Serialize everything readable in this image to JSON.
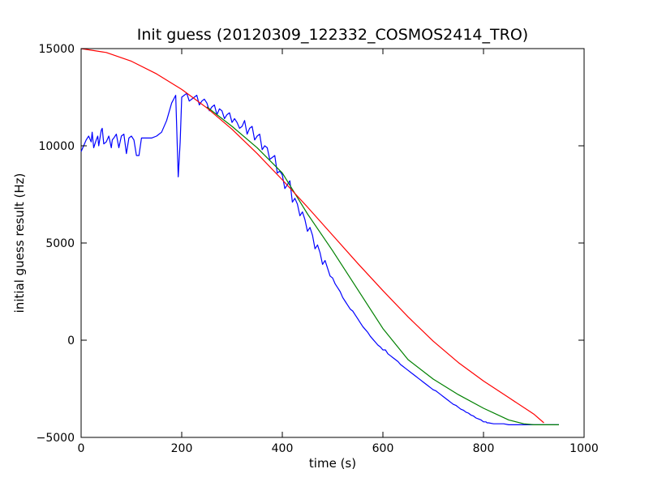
{
  "chart_data": {
    "type": "line",
    "title": "Init guess (20120309_122332_COSMOS2414_TRO)",
    "xlabel": "time (s)",
    "ylabel": "initial guess result (Hz)",
    "xlim": [
      0,
      1000
    ],
    "ylim": [
      -5000,
      15000
    ],
    "xticks": [
      0,
      200,
      400,
      600,
      800,
      1000
    ],
    "yticks": [
      -5000,
      0,
      5000,
      10000,
      15000
    ],
    "xtick_labels": [
      "0",
      "200",
      "400",
      "600",
      "800",
      "1000"
    ],
    "ytick_labels": [
      "−5000",
      "0",
      "5000",
      "10000",
      "15000"
    ],
    "grid": false,
    "legend": "none",
    "series": [
      {
        "color": "#0000ff",
        "x": [
          0,
          5,
          10,
          15,
          20,
          22,
          25,
          30,
          33,
          35,
          40,
          42,
          45,
          50,
          55,
          60,
          62,
          65,
          70,
          75,
          80,
          85,
          90,
          95,
          100,
          105,
          110,
          115,
          120,
          130,
          140,
          150,
          160,
          170,
          180,
          188,
          193,
          197,
          200,
          205,
          210,
          215,
          220,
          225,
          230,
          235,
          240,
          245,
          250,
          255,
          260,
          265,
          270,
          275,
          280,
          285,
          290,
          295,
          300,
          305,
          310,
          315,
          320,
          325,
          330,
          335,
          340,
          345,
          350,
          355,
          360,
          365,
          370,
          375,
          380,
          385,
          390,
          395,
          400,
          405,
          410,
          415,
          420,
          425,
          430,
          435,
          440,
          445,
          450,
          455,
          460,
          465,
          470,
          475,
          480,
          485,
          490,
          495,
          500,
          505,
          510,
          515,
          520,
          525,
          530,
          535,
          540,
          545,
          550,
          555,
          560,
          565,
          570,
          575,
          580,
          585,
          590,
          595,
          600,
          605,
          610,
          615,
          620,
          625,
          630,
          635,
          640,
          645,
          650,
          655,
          660,
          665,
          670,
          675,
          680,
          685,
          690,
          695,
          700,
          705,
          710,
          715,
          720,
          725,
          730,
          735,
          740,
          745,
          750,
          755,
          760,
          765,
          770,
          775,
          780,
          785,
          790,
          795,
          800,
          803,
          805,
          807,
          810,
          820,
          840,
          850,
          870,
          900,
          950
        ],
        "y": [
          9700,
          10000,
          10300,
          10500,
          10200,
          10700,
          9900,
          10300,
          10500,
          10000,
          10800,
          10900,
          10100,
          10200,
          10500,
          9900,
          10300,
          10400,
          10600,
          9900,
          10500,
          10600,
          9600,
          10400,
          10500,
          10300,
          9500,
          9500,
          10400,
          10400,
          10400,
          10500,
          10700,
          11300,
          12200,
          12600,
          8400,
          10200,
          12500,
          12600,
          12700,
          12300,
          12400,
          12500,
          12600,
          12100,
          12300,
          12400,
          12200,
          11800,
          12000,
          12100,
          11600,
          11900,
          11800,
          11400,
          11600,
          11700,
          11200,
          11400,
          11200,
          10900,
          11000,
          11300,
          10600,
          10900,
          11000,
          10300,
          10500,
          10600,
          9800,
          10000,
          9900,
          9300,
          9400,
          9500,
          8600,
          8700,
          8500,
          7800,
          8000,
          8200,
          7100,
          7300,
          7000,
          6400,
          6600,
          6200,
          5600,
          5800,
          5400,
          4700,
          4900,
          4500,
          3900,
          4100,
          3700,
          3300,
          3200,
          2900,
          2700,
          2500,
          2200,
          2000,
          1800,
          1600,
          1500,
          1300,
          1100,
          900,
          700,
          550,
          400,
          200,
          50,
          -100,
          -250,
          -350,
          -500,
          -500,
          -700,
          -800,
          -900,
          -1000,
          -1100,
          -1250,
          -1350,
          -1450,
          -1550,
          -1650,
          -1750,
          -1850,
          -1950,
          -2050,
          -2150,
          -2250,
          -2350,
          -2450,
          -2550,
          -2600,
          -2700,
          -2800,
          -2900,
          -3000,
          -3100,
          -3200,
          -3300,
          -3350,
          -3450,
          -3550,
          -3600,
          -3700,
          -3750,
          -3850,
          -3900,
          -4000,
          -4050,
          -4100,
          -4200,
          -4200,
          -4200,
          -4250,
          -4250,
          -4300,
          -4300,
          -4350,
          -4350,
          -4350,
          -4350
        ]
      },
      {
        "color": "#008000",
        "x": [
          250,
          300,
          350,
          400,
          450,
          500,
          550,
          600,
          650,
          700,
          750,
          800,
          850,
          880,
          900,
          950
        ],
        "y": [
          12000,
          11000,
          9900,
          8600,
          6500,
          4600,
          2600,
          600,
          -1000,
          -2000,
          -2800,
          -3500,
          -4100,
          -4300,
          -4350,
          -4350
        ]
      },
      {
        "color": "#ff0000",
        "x": [
          0,
          50,
          100,
          150,
          200,
          250,
          300,
          350,
          400,
          450,
          500,
          550,
          600,
          650,
          700,
          750,
          800,
          850,
          900,
          920
        ],
        "y": [
          15000,
          14800,
          14350,
          13700,
          12900,
          11950,
          10850,
          9600,
          8250,
          6850,
          5400,
          3950,
          2550,
          1200,
          -50,
          -1150,
          -2100,
          -2950,
          -3800,
          -4250
        ]
      }
    ]
  }
}
